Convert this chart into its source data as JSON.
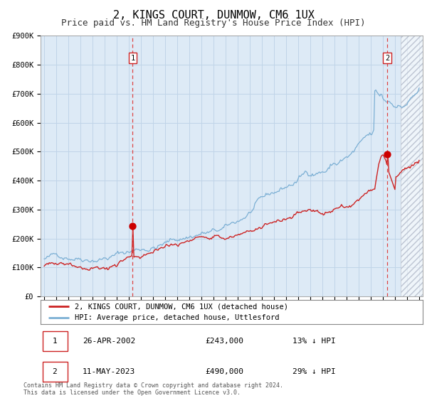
{
  "title": "2, KINGS COURT, DUNMOW, CM6 1UX",
  "subtitle": "Price paid vs. HM Land Registry's House Price Index (HPI)",
  "title_fontsize": 11,
  "subtitle_fontsize": 9,
  "x_start_year": 1995,
  "x_end_year": 2026,
  "y_min": 0,
  "y_max": 900000,
  "y_ticks": [
    0,
    100000,
    200000,
    300000,
    400000,
    500000,
    600000,
    700000,
    800000,
    900000
  ],
  "y_tick_labels": [
    "£0",
    "£100K",
    "£200K",
    "£300K",
    "£400K",
    "£500K",
    "£600K",
    "£700K",
    "£800K",
    "£900K"
  ],
  "sale1_year": 2002.32,
  "sale1_price": 243000,
  "sale1_label": "1",
  "sale2_year": 2023.37,
  "sale2_price": 490000,
  "sale2_label": "2",
  "hpi_line_color": "#7bafd4",
  "price_line_color": "#cc2222",
  "sale_dot_color": "#cc0000",
  "dashed_line_color": "#dd4444",
  "grid_color": "#c0d4e8",
  "bg_color": "#ddeaf6",
  "legend_entry1": "2, KINGS COURT, DUNMOW, CM6 1UX (detached house)",
  "legend_entry2": "HPI: Average price, detached house, Uttlesford",
  "table_row1": [
    "1",
    "26-APR-2002",
    "£243,000",
    "13% ↓ HPI"
  ],
  "table_row2": [
    "2",
    "11-MAY-2023",
    "£490,000",
    "29% ↓ HPI"
  ],
  "footer": "Contains HM Land Registry data © Crown copyright and database right 2024.\nThis data is licensed under the Open Government Licence v3.0."
}
